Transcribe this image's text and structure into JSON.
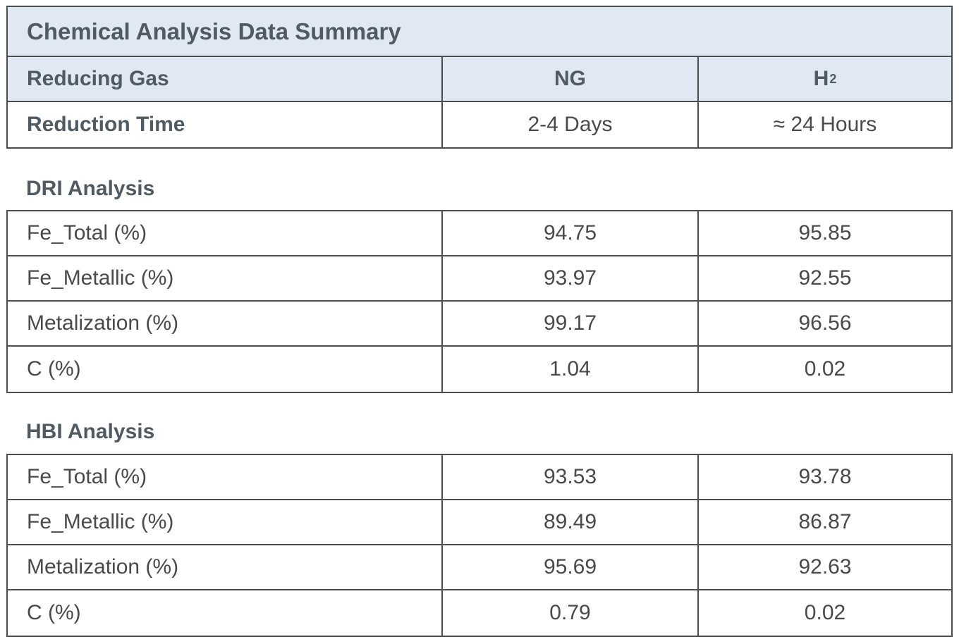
{
  "title": "Chemical Analysis Data Summary",
  "header": {
    "reducing_gas_label": "Reducing Gas",
    "ng_label": "NG",
    "h2_label": "H",
    "h2_sub": "2",
    "reduction_time_label": "Reduction Time",
    "ng_time": "2-4 Days",
    "h2_time": "≈ 24 Hours"
  },
  "dri": {
    "title": "DRI Analysis",
    "rows": [
      {
        "label": "Fe_Total (%)",
        "ng": "94.75",
        "h2": "95.85"
      },
      {
        "label": "Fe_Metallic (%)",
        "ng": "93.97",
        "h2": "92.55"
      },
      {
        "label": "Metalization (%)",
        "ng": "99.17",
        "h2": "96.56"
      },
      {
        "label": "C (%)",
        "ng": "1.04",
        "h2": "0.02"
      }
    ]
  },
  "hbi": {
    "title": "HBI Analysis",
    "rows": [
      {
        "label": "Fe_Total (%)",
        "ng": "93.53",
        "h2": "93.78"
      },
      {
        "label": "Fe_Metallic (%)",
        "ng": "89.49",
        "h2": "86.87"
      },
      {
        "label": "Metalization (%)",
        "ng": "95.69",
        "h2": "92.63"
      },
      {
        "label": "C (%)",
        "ng": "0.79",
        "h2": "0.02"
      }
    ]
  }
}
